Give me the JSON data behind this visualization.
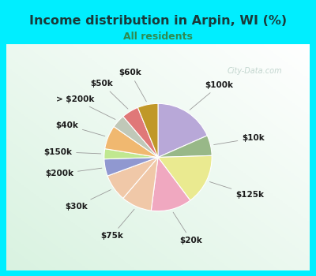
{
  "title": "Income distribution in Arpin, WI (%)",
  "subtitle": "All residents",
  "title_color": "#1a3a3a",
  "subtitle_color": "#2e8b50",
  "background_outer": "#00eeff",
  "labels": [
    "$100k",
    "$10k",
    "$125k",
    "$20k",
    "$75k",
    "$30k",
    "$200k",
    "$150k",
    "$40k",
    "> $200k",
    "$50k",
    "$60k"
  ],
  "values": [
    18,
    6,
    15,
    12,
    9,
    8,
    5,
    3,
    7,
    4,
    5,
    6
  ],
  "colors": [
    "#b8a8d8",
    "#98b888",
    "#eaea90",
    "#f0a8c0",
    "#f0c8a8",
    "#f0c8a8",
    "#9098d0",
    "#c0e890",
    "#f0b870",
    "#c0c8b8",
    "#e07878",
    "#c09828"
  ],
  "label_fontsize": 7.5,
  "watermark": "City-Data.com"
}
